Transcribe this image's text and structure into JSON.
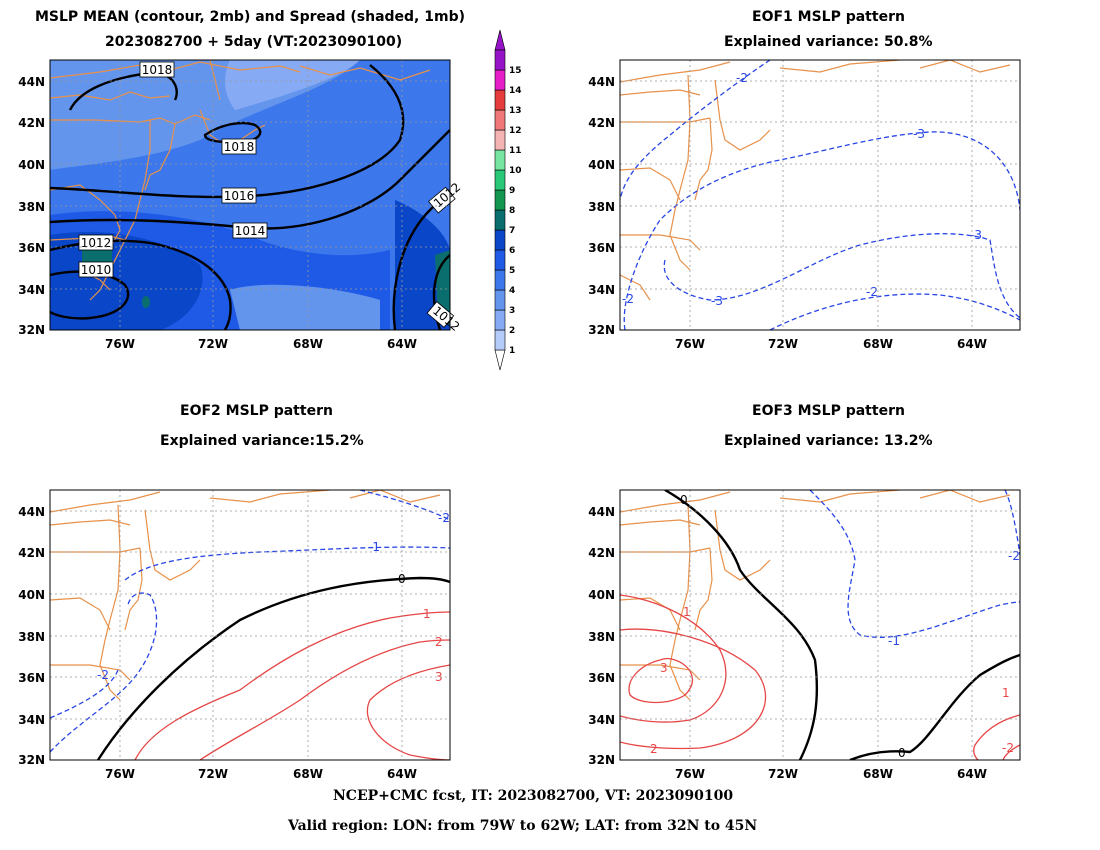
{
  "panels": [
    {
      "id": "mean",
      "title1": "MSLP MEAN (contour, 2mb) and Spread (shaded, 1mb)",
      "title2": "2023082700 + 5day (VT:2023090100)"
    },
    {
      "id": "eof1",
      "title1": "EOF1 MSLP pattern",
      "title2": "Explained variance: 50.8%"
    },
    {
      "id": "eof2",
      "title1": "EOF2 MSLP pattern",
      "title2": "Explained variance:15.2%"
    },
    {
      "id": "eof3",
      "title1": "EOF3 MSLP pattern",
      "title2": "Explained variance: 13.2%"
    }
  ],
  "axes": {
    "lon_ticks": [
      "76W",
      "72W",
      "68W",
      "64W"
    ],
    "lat_ticks": [
      "44N",
      "42N",
      "40N",
      "38N",
      "36N",
      "34N",
      "32N"
    ]
  },
  "colorbar": {
    "levels": [
      "1",
      "2",
      "3",
      "4",
      "5",
      "6",
      "7",
      "8",
      "9",
      "10",
      "11",
      "12",
      "13",
      "14",
      "15"
    ],
    "colors": [
      "#b4ccfa",
      "#87aaf5",
      "#6495ed",
      "#3c78eb",
      "#1e5ae6",
      "#0a46c8",
      "#0a6e6e",
      "#149650",
      "#28c878",
      "#78e6a0",
      "#f5b4b4",
      "#f07878",
      "#e63c3c",
      "#e61ec8",
      "#9614c8"
    ]
  },
  "contour_labels": {
    "mean": [
      "1018",
      "1018",
      "1016",
      "1014",
      "1012",
      "1010",
      "1012",
      "1012"
    ],
    "eof1": [
      "-2",
      "-3",
      "-3",
      "-3",
      "-2",
      "-2"
    ],
    "eof2": [
      "-2",
      "-1",
      "-2",
      "0",
      "1",
      "2",
      "3"
    ],
    "eof3": [
      "0",
      "-2",
      "-1",
      "0",
      "1",
      "3",
      "2",
      "1",
      "-2"
    ]
  },
  "footer": {
    "line1": "NCEP+CMC fcst, IT: 2023082700, VT: 2023090100",
    "line2": "Valid region: LON: from 79W to 62W; LAT: from 32N to 45N"
  }
}
